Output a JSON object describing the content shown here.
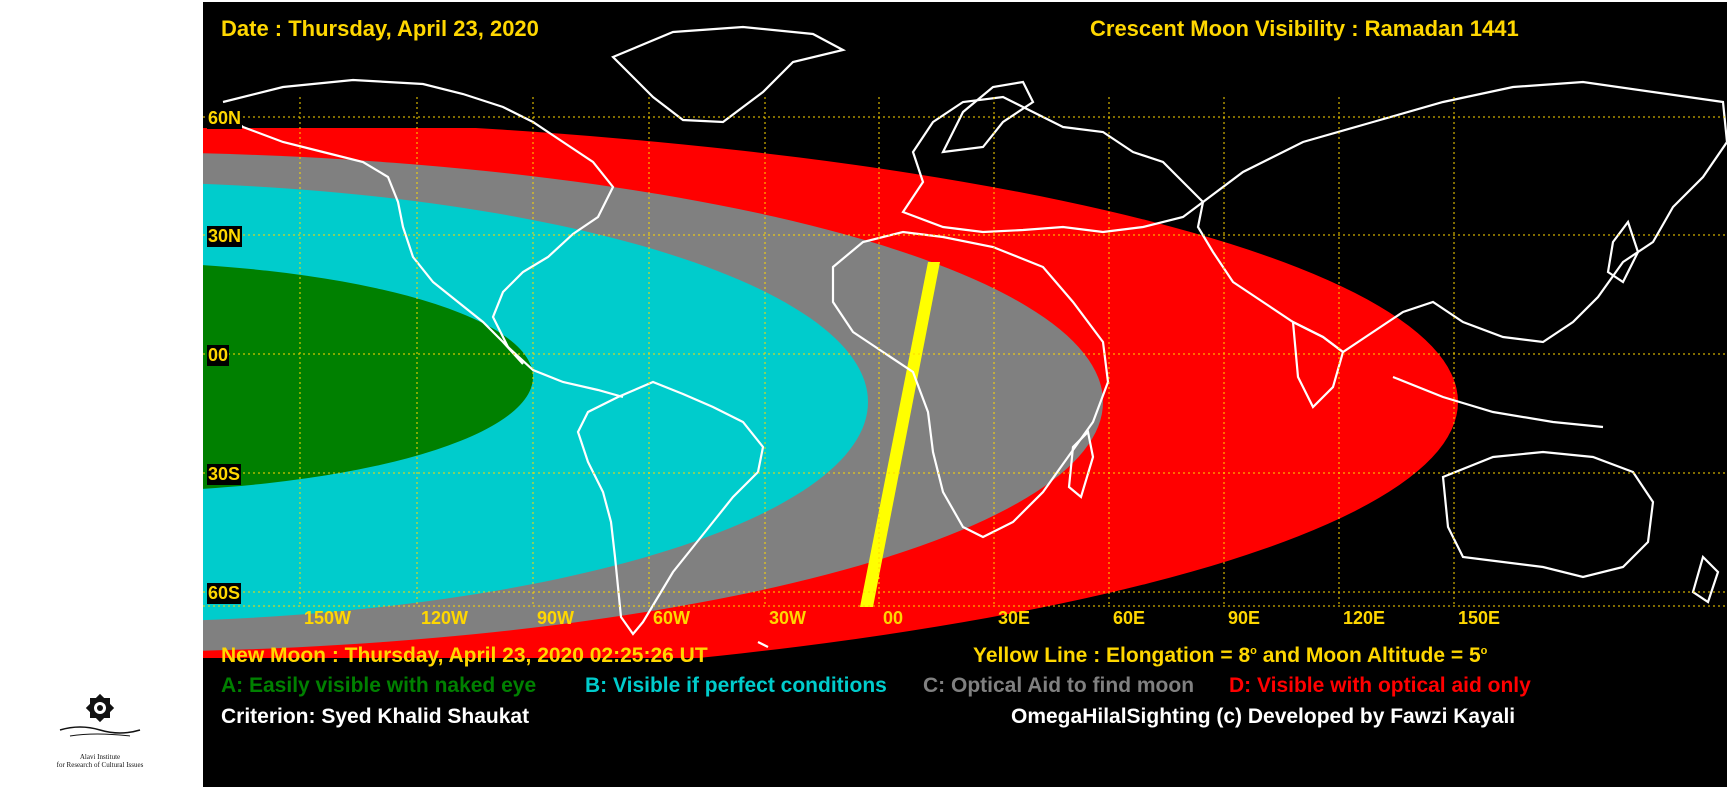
{
  "header": {
    "date": "Date : Thursday, April 23, 2020",
    "title": "Crescent Moon Visibility : Ramadan  1441"
  },
  "latitudes": [
    "60N",
    "30N",
    "00",
    "30S",
    "60S"
  ],
  "longitudes": [
    "150W",
    "120W",
    "90W",
    "60W",
    "30W",
    "00",
    "30E",
    "60E",
    "90E",
    "120E",
    "150E"
  ],
  "footer": {
    "new_moon": "New Moon : Thursday, April 23, 2020  02:25:26  UT",
    "yellow_line_prefix": "Yellow Line : Elongation = 8",
    "yellow_line_mid": " and Moon Altitude = 5",
    "degree_mark": "o",
    "legend_a": "A: Easily visible with naked eye",
    "legend_b": "B: Visible if perfect conditions",
    "legend_c": "C: Optical Aid to find moon",
    "legend_d": "D: Visible with optical aid only",
    "criterion": "Criterion: Syed Khalid Shaukat",
    "credit": "OmegaHilalSighting  (c)  Developed by Fawzi Kayali"
  },
  "logo": {
    "name_en": "Alavi Institute",
    "tagline_en": "for Research of Cultural Issues"
  },
  "colors": {
    "background": "#000000",
    "zone_a": "#008000",
    "zone_b": "#00cccc",
    "zone_c": "#808080",
    "zone_d": "#ff0000",
    "yellow_line": "#ffff00",
    "grid": "#ffd700",
    "coast": "#ffffff"
  }
}
